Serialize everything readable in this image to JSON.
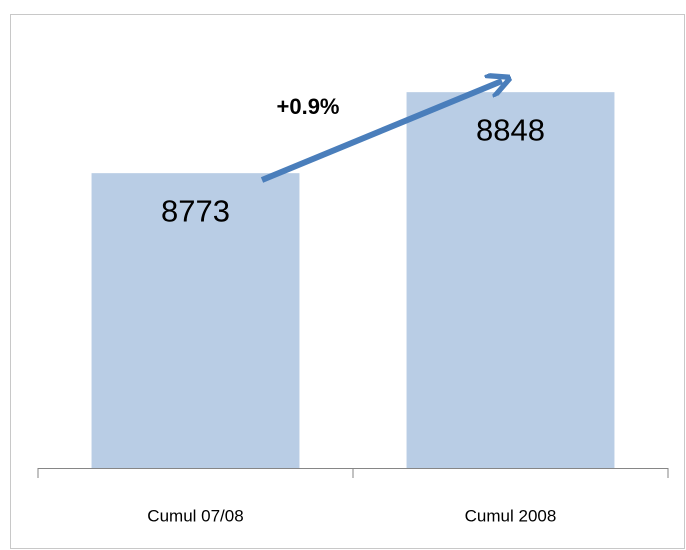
{
  "chart_data": {
    "type": "bar",
    "categories": [
      "Cumul 07/08",
      "Cumul 2008"
    ],
    "values": [
      8773,
      8848
    ],
    "color": "#b9cde5",
    "ylim": [
      8500,
      8900
    ],
    "annotation": "+0.9%"
  }
}
